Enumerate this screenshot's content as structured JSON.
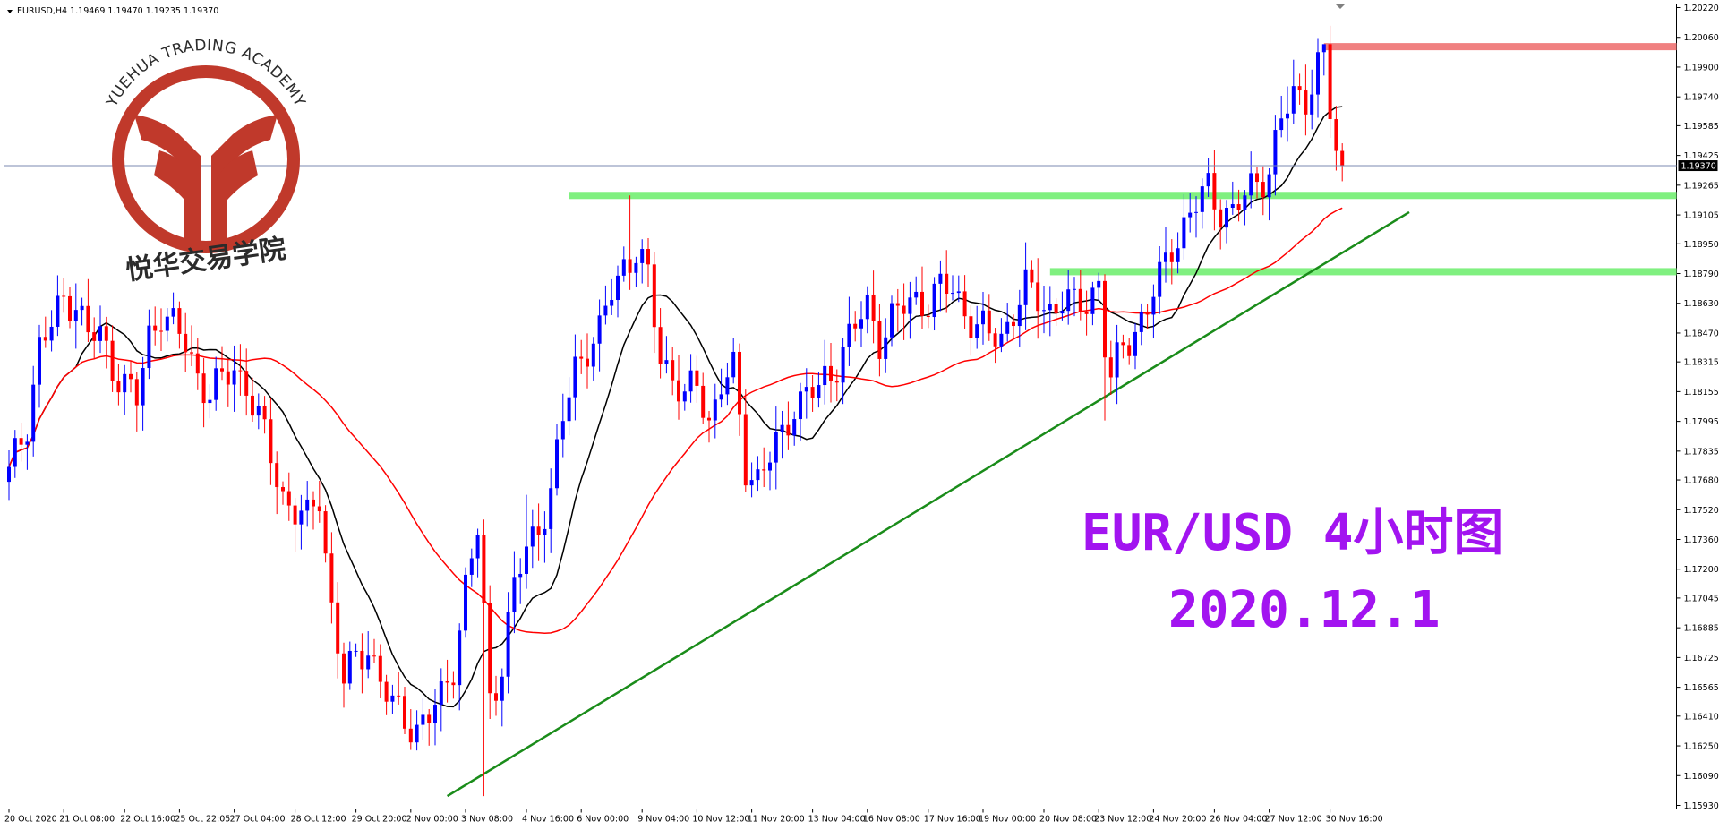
{
  "chart_data": {
    "type": "candlestick",
    "instrument_header": "EURUSD,H4  1.19469 1.19470 1.19235 1.19370",
    "title_lines": [
      "EUR/USD 4小时图",
      "2020.12.1"
    ],
    "watermark": {
      "arc_text": "YUEHUA TRADING ACADEMY",
      "cn_text": "悦华交易学院"
    },
    "colors": {
      "bull": "#0000ff",
      "bear": "#ff0000",
      "ma_fast": "#000000",
      "ma_slow": "#ff0000",
      "support_zone": "#80f080",
      "resistance_zone": "#f08080",
      "trendline": "#1a8c1a",
      "title": "#a214f0",
      "logo": "#c0392b"
    },
    "y_axis": {
      "min": 1.1593,
      "max": 1.2022,
      "ticks": [
        "1.20220",
        "1.20060",
        "1.19900",
        "1.19740",
        "1.19585",
        "1.19425",
        "1.19265",
        "1.19105",
        "1.18950",
        "1.18790",
        "1.18630",
        "1.18470",
        "1.18315",
        "1.18155",
        "1.17995",
        "1.17835",
        "1.17680",
        "1.17520",
        "1.17360",
        "1.17200",
        "1.17045",
        "1.16885",
        "1.16725",
        "1.16565",
        "1.16410",
        "1.16250",
        "1.16090",
        "1.15930"
      ],
      "current_price": "1.19370",
      "current_value": 1.1937
    },
    "x_axis": {
      "labels": [
        {
          "bar": 0,
          "text": "20 Oct 2020"
        },
        {
          "bar": 9,
          "text": "21 Oct 08:00"
        },
        {
          "bar": 19,
          "text": "22 Oct 16:00"
        },
        {
          "bar": 28,
          "text": "25 Oct 22:05"
        },
        {
          "bar": 37,
          "text": "27 Oct 04:00"
        },
        {
          "bar": 47,
          "text": "28 Oct 12:00"
        },
        {
          "bar": 57,
          "text": "29 Oct 20:00"
        },
        {
          "bar": 66,
          "text": "2 Nov 00:00"
        },
        {
          "bar": 75,
          "text": "3 Nov 08:00"
        },
        {
          "bar": 85,
          "text": "4 Nov 16:00"
        },
        {
          "bar": 94,
          "text": "6 Nov 00:00"
        },
        {
          "bar": 104,
          "text": "9 Nov 04:00"
        },
        {
          "bar": 113,
          "text": "10 Nov 12:00"
        },
        {
          "bar": 122,
          "text": "11 Nov 20:00"
        },
        {
          "bar": 132,
          "text": "13 Nov 04:00"
        },
        {
          "bar": 141,
          "text": "16 Nov 08:00"
        },
        {
          "bar": 151,
          "text": "17 Nov 16:00"
        },
        {
          "bar": 160,
          "text": "19 Nov 00:00"
        },
        {
          "bar": 170,
          "text": "20 Nov 08:00"
        },
        {
          "bar": 179,
          "text": "23 Nov 12:00"
        },
        {
          "bar": 188,
          "text": "24 Nov 20:00"
        },
        {
          "bar": 198,
          "text": "26 Nov 04:00"
        },
        {
          "bar": 207,
          "text": "27 Nov 12:00"
        },
        {
          "bar": 217,
          "text": "30 Nov 16:00"
        }
      ]
    },
    "anchors": [
      [
        0,
        1.177
      ],
      [
        3,
        1.18
      ],
      [
        5,
        1.184
      ],
      [
        7,
        1.185
      ],
      [
        9,
        1.1865
      ],
      [
        11,
        1.1865
      ],
      [
        13,
        1.1845
      ],
      [
        15,
        1.1845
      ],
      [
        17,
        1.183
      ],
      [
        19,
        1.182
      ],
      [
        21,
        1.181
      ],
      [
        23,
        1.1845
      ],
      [
        25,
        1.186
      ],
      [
        27,
        1.185
      ],
      [
        29,
        1.184
      ],
      [
        31,
        1.1825
      ],
      [
        33,
        1.1815
      ],
      [
        35,
        1.182
      ],
      [
        37,
        1.1828
      ],
      [
        39,
        1.182
      ],
      [
        41,
        1.18
      ],
      [
        43,
        1.178
      ],
      [
        45,
        1.176
      ],
      [
        47,
        1.1752
      ],
      [
        49,
        1.1745
      ],
      [
        51,
        1.176
      ],
      [
        53,
        1.17
      ],
      [
        55,
        1.166
      ],
      [
        57,
        1.167
      ],
      [
        59,
        1.168
      ],
      [
        61,
        1.166
      ],
      [
        63,
        1.1645
      ],
      [
        65,
        1.164
      ],
      [
        67,
        1.1635
      ],
      [
        69,
        1.164
      ],
      [
        71,
        1.165
      ],
      [
        73,
        1.167
      ],
      [
        75,
        1.171
      ],
      [
        77,
        1.174
      ],
      [
        79,
        1.165
      ],
      [
        81,
        1.167
      ],
      [
        83,
        1.171
      ],
      [
        85,
        1.173
      ],
      [
        87,
        1.1745
      ],
      [
        89,
        1.176
      ],
      [
        91,
        1.18
      ],
      [
        93,
        1.183
      ],
      [
        95,
        1.184
      ],
      [
        97,
        1.1845
      ],
      [
        99,
        1.187
      ],
      [
        101,
        1.1885
      ],
      [
        103,
        1.189
      ],
      [
        105,
        1.1875
      ],
      [
        107,
        1.1835
      ],
      [
        109,
        1.1825
      ],
      [
        111,
        1.181
      ],
      [
        113,
        1.182
      ],
      [
        115,
        1.18
      ],
      [
        117,
        1.182
      ],
      [
        119,
        1.1825
      ],
      [
        121,
        1.1775
      ],
      [
        123,
        1.177
      ],
      [
        125,
        1.178
      ],
      [
        127,
        1.179
      ],
      [
        129,
        1.181
      ],
      [
        131,
        1.1815
      ],
      [
        133,
        1.1815
      ],
      [
        135,
        1.1825
      ],
      [
        137,
        1.184
      ],
      [
        139,
        1.185
      ],
      [
        141,
        1.186
      ],
      [
        143,
        1.1845
      ],
      [
        145,
        1.1855
      ],
      [
        147,
        1.186
      ],
      [
        149,
        1.1865
      ],
      [
        151,
        1.1865
      ],
      [
        153,
        1.187
      ],
      [
        155,
        1.187
      ],
      [
        157,
        1.186
      ],
      [
        159,
        1.185
      ],
      [
        161,
        1.1845
      ],
      [
        163,
        1.1845
      ],
      [
        165,
        1.186
      ],
      [
        167,
        1.187
      ],
      [
        169,
        1.1865
      ],
      [
        171,
        1.186
      ],
      [
        173,
        1.1865
      ],
      [
        175,
        1.186
      ],
      [
        177,
        1.1865
      ],
      [
        179,
        1.1875
      ],
      [
        180,
        1.184
      ],
      [
        181,
        1.182
      ],
      [
        183,
        1.184
      ],
      [
        185,
        1.185
      ],
      [
        187,
        1.186
      ],
      [
        189,
        1.1875
      ],
      [
        191,
        1.1895
      ],
      [
        193,
        1.1905
      ],
      [
        195,
        1.1915
      ],
      [
        197,
        1.1925
      ],
      [
        199,
        1.1915
      ],
      [
        201,
        1.191
      ],
      [
        203,
        1.192
      ],
      [
        205,
        1.193
      ],
      [
        207,
        1.1935
      ],
      [
        209,
        1.196
      ],
      [
        211,
        1.1975
      ],
      [
        213,
        1.1975
      ],
      [
        215,
        1.199
      ],
      [
        216,
        1.1995
      ],
      [
        217,
        1.1965
      ],
      [
        218,
        1.1945
      ],
      [
        219,
        1.1937
      ]
    ],
    "bar_count": 220,
    "plot_x_range": [
      "20 Oct 2020",
      "30 Nov 16:00"
    ],
    "price_lines": {
      "current": 1.1937,
      "support_upper": {
        "value": 1.1921,
        "from_bar": 92
      },
      "support_lower": {
        "value": 1.188,
        "from_bar": 171
      },
      "resistance": {
        "value": 1.2001,
        "from_bar": 216
      }
    },
    "trendline": {
      "from": [
        72,
        1.1598
      ],
      "to": [
        230,
        1.1912
      ]
    },
    "moving_averages": [
      {
        "kind": "fast",
        "period": 12
      },
      {
        "kind": "slow",
        "period": 40
      }
    ]
  }
}
